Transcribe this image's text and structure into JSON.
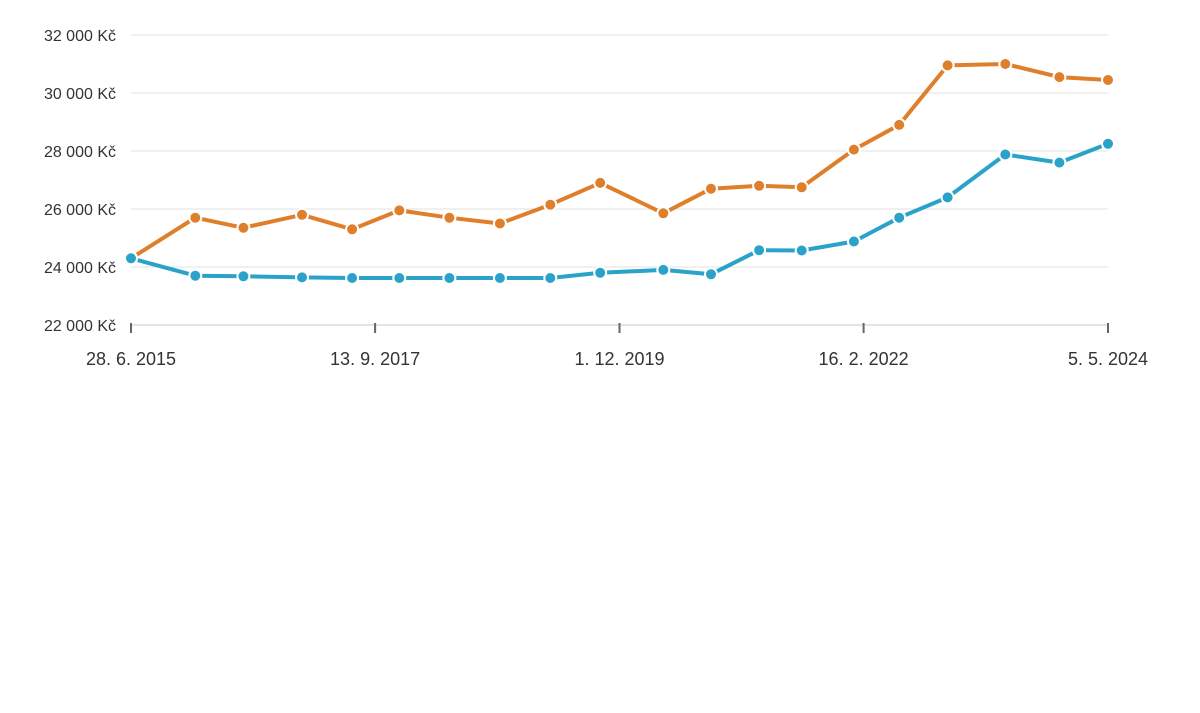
{
  "chart_data": {
    "type": "line",
    "title": "",
    "xlabel": "",
    "ylabel": "",
    "ylim": [
      22000,
      32000
    ],
    "xlim": [
      "2015-06-28",
      "2024-05-05"
    ],
    "y_ticks": [
      {
        "value": 22000,
        "label": "22 000 Kč"
      },
      {
        "value": 24000,
        "label": "24 000 Kč"
      },
      {
        "value": 26000,
        "label": "26 000 Kč"
      },
      {
        "value": 28000,
        "label": "28 000 Kč"
      },
      {
        "value": 30000,
        "label": "30 000 Kč"
      },
      {
        "value": 32000,
        "label": "32 000 Kč"
      }
    ],
    "x_ticks": [
      {
        "date": "2015-06-28",
        "label": "28. 6. 2015"
      },
      {
        "date": "2017-09-13",
        "label": "13. 9. 2017"
      },
      {
        "date": "2019-12-01",
        "label": "1. 12. 2019"
      },
      {
        "date": "2022-02-16",
        "label": "16. 2. 2022"
      },
      {
        "date": "2024-05-05",
        "label": "5. 5. 2024"
      }
    ],
    "grid": true,
    "legend": "none",
    "series": [
      {
        "color": "#e07f2b",
        "points": [
          {
            "x": "2015-06-28",
            "y": 24300
          },
          {
            "x": "2016-01-27",
            "y": 25700
          },
          {
            "x": "2016-07-04",
            "y": 25350
          },
          {
            "x": "2017-01-14",
            "y": 25800
          },
          {
            "x": "2017-06-29",
            "y": 25300
          },
          {
            "x": "2017-12-02",
            "y": 25950
          },
          {
            "x": "2018-05-17",
            "y": 25700
          },
          {
            "x": "2018-10-31",
            "y": 25500
          },
          {
            "x": "2019-04-16",
            "y": 26150
          },
          {
            "x": "2019-09-28",
            "y": 26900
          },
          {
            "x": "2020-04-24",
            "y": 25850
          },
          {
            "x": "2020-09-29",
            "y": 26700
          },
          {
            "x": "2021-03-07",
            "y": 26800
          },
          {
            "x": "2021-07-26",
            "y": 26750
          },
          {
            "x": "2022-01-15",
            "y": 28050
          },
          {
            "x": "2022-06-14",
            "y": 28900
          },
          {
            "x": "2022-11-21",
            "y": 30950
          },
          {
            "x": "2023-05-31",
            "y": 31000
          },
          {
            "x": "2023-11-26",
            "y": 30550
          },
          {
            "x": "2024-05-05",
            "y": 30450
          }
        ]
      },
      {
        "color": "#2aa2c9",
        "points": [
          {
            "x": "2015-06-28",
            "y": 24300
          },
          {
            "x": "2016-01-27",
            "y": 23700
          },
          {
            "x": "2016-07-04",
            "y": 23680
          },
          {
            "x": "2017-01-14",
            "y": 23640
          },
          {
            "x": "2017-06-29",
            "y": 23620
          },
          {
            "x": "2017-12-02",
            "y": 23620
          },
          {
            "x": "2018-05-17",
            "y": 23620
          },
          {
            "x": "2018-10-31",
            "y": 23620
          },
          {
            "x": "2019-04-16",
            "y": 23620
          },
          {
            "x": "2019-09-28",
            "y": 23800
          },
          {
            "x": "2020-04-24",
            "y": 23900
          },
          {
            "x": "2020-09-29",
            "y": 23750
          },
          {
            "x": "2021-03-07",
            "y": 24580
          },
          {
            "x": "2021-07-26",
            "y": 24570
          },
          {
            "x": "2022-01-15",
            "y": 24880
          },
          {
            "x": "2022-06-14",
            "y": 25700
          },
          {
            "x": "2022-11-21",
            "y": 26400
          },
          {
            "x": "2023-05-31",
            "y": 27880
          },
          {
            "x": "2023-11-26",
            "y": 27600
          },
          {
            "x": "2024-05-05",
            "y": 28250
          }
        ]
      }
    ]
  }
}
